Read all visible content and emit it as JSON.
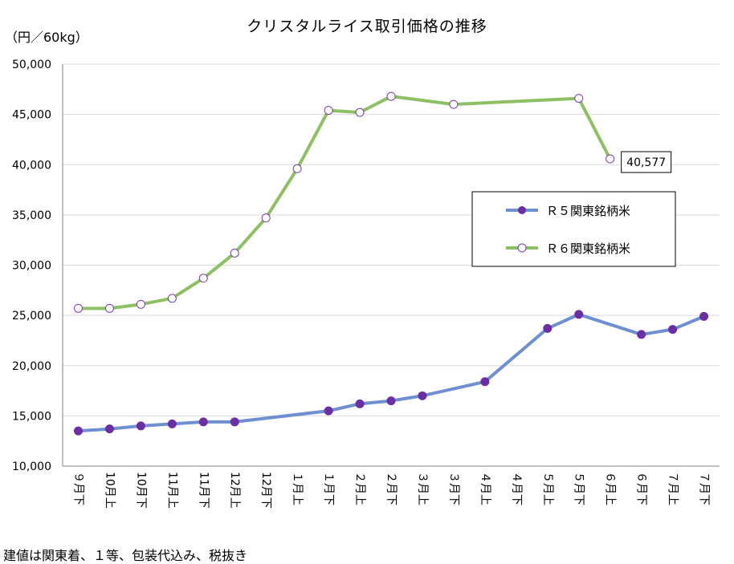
{
  "title": "クリスタルライス取引価格の推移",
  "unit": "（円／60kg）",
  "footnote": "建値は関東着、１等、包装代込み、税抜き",
  "colors": {
    "r5": "#6e8fd0",
    "r6": "#8cc063",
    "r5_marker": "#6b2ea3",
    "grid": "#d9d9d9"
  },
  "chart_data": {
    "type": "line",
    "title": "クリスタルライス取引価格の推移",
    "ylabel": "（円／60kg）",
    "ylim": [
      10000,
      50000
    ],
    "yticks": [
      "10,000",
      "15,000",
      "20,000",
      "25,000",
      "30,000",
      "35,000",
      "40,000",
      "45,000",
      "50,000"
    ],
    "categories": [
      "９月下",
      "10月上",
      "10月下",
      "11月上",
      "11月下",
      "12月上",
      "12月下",
      "１月上",
      "１月下",
      "２月上",
      "２月下",
      "３月上",
      "３月下",
      "４月上",
      "４月下",
      "５月上",
      "５月下",
      "６月上",
      "６月下",
      "７月上",
      "７月下"
    ],
    "grid": true,
    "legend_position": "right",
    "series": [
      {
        "name": "Ｒ５関東銘柄米",
        "marker": "filled",
        "values": [
          13500,
          13700,
          14000,
          14200,
          14400,
          14400,
          null,
          null,
          15500,
          16200,
          16500,
          17000,
          null,
          18400,
          null,
          23700,
          25100,
          null,
          23100,
          23600,
          24900
        ]
      },
      {
        "name": "Ｒ６関東銘柄米",
        "marker": "hollow",
        "values": [
          25700,
          25700,
          26100,
          26700,
          28700,
          31200,
          34700,
          39600,
          45400,
          45200,
          46800,
          null,
          46000,
          null,
          null,
          null,
          46600,
          40577,
          null,
          null,
          null
        ]
      }
    ],
    "annotations": [
      {
        "series": 1,
        "index": 17,
        "text": "40,577"
      }
    ]
  }
}
